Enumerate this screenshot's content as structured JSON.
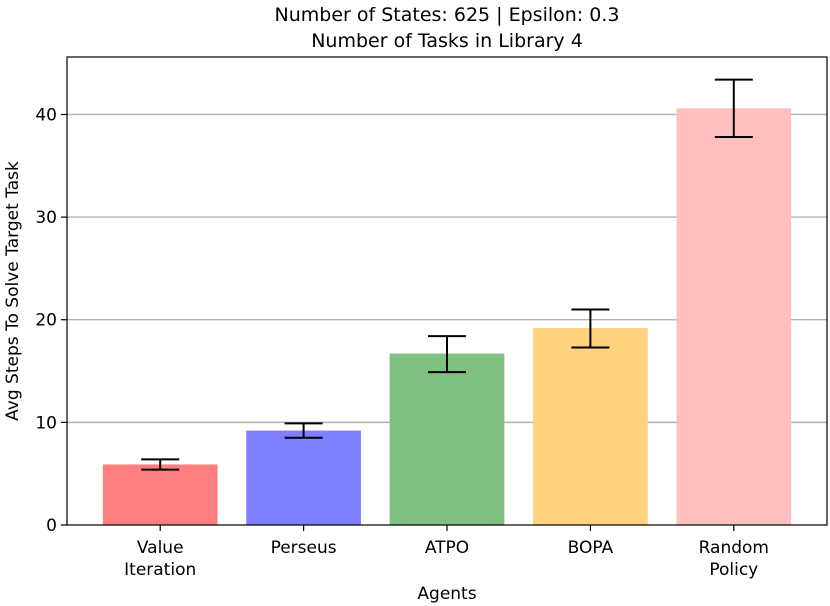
{
  "chart_data": {
    "type": "bar",
    "title": [
      "Number of States: 625 | Epsilon: 0.3",
      "Number of Tasks in Library 4"
    ],
    "xlabel": "Agents",
    "ylabel": "Avg Steps To Solve Target Task",
    "categories": [
      [
        "Value",
        "Iteration"
      ],
      [
        "Perseus"
      ],
      [
        "ATPO"
      ],
      [
        "BOPA"
      ],
      [
        "Random",
        "Policy"
      ]
    ],
    "values": [
      5.9,
      9.2,
      16.7,
      19.2,
      40.6
    ],
    "errors": [
      [
        5.4,
        6.4
      ],
      [
        8.5,
        9.9
      ],
      [
        14.9,
        18.4
      ],
      [
        17.3,
        21.0
      ],
      [
        37.8,
        43.4
      ]
    ],
    "colors": [
      "#ff7f7f",
      "#7f7fff",
      "#7fbf7f",
      "#ffd27f",
      "#ffbfbf"
    ],
    "ylim": [
      0,
      45.6
    ],
    "yticks": [
      0,
      10,
      20,
      30,
      40
    ],
    "grid": "y",
    "legend": "none"
  }
}
